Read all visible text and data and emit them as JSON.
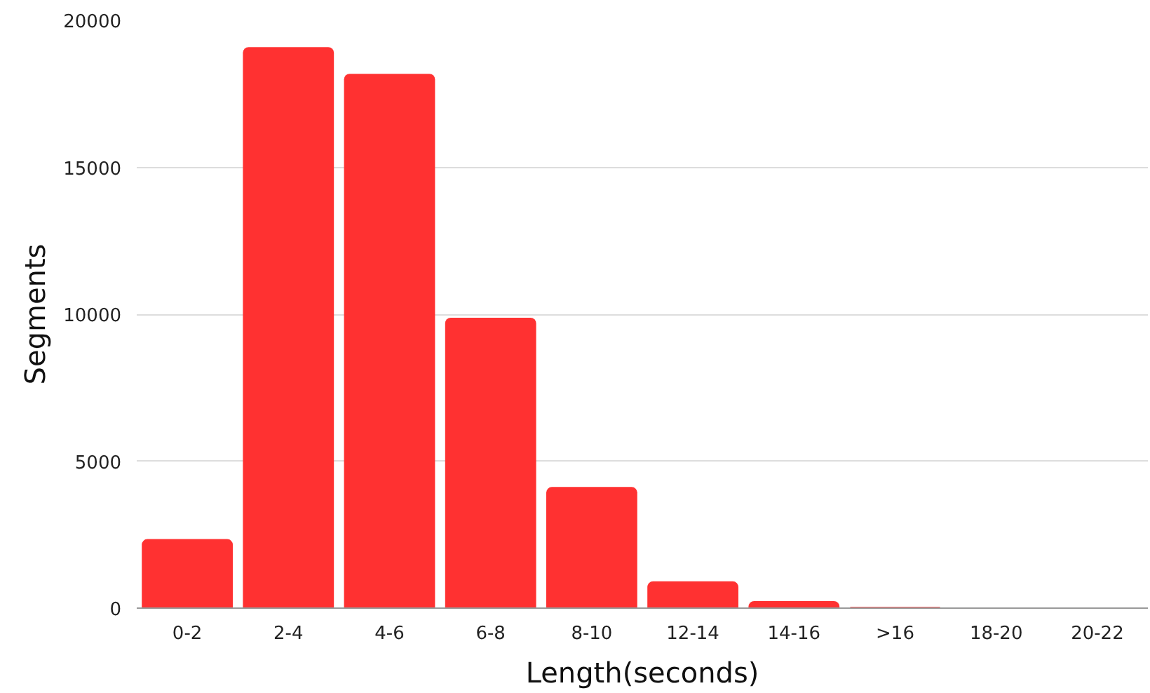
{
  "chart_data": {
    "type": "bar",
    "xlabel": "Length(seconds)",
    "ylabel": "Segments",
    "categories": [
      "0-2",
      "2-4",
      "4-6",
      "6-8",
      "8-10",
      "12-14",
      "14-16",
      ">16",
      "18-20",
      "20-22"
    ],
    "values": [
      2350,
      19090,
      18180,
      9880,
      4120,
      910,
      240,
      40,
      0,
      0
    ],
    "color": "#ff3131",
    "ylim": [
      0,
      20000
    ],
    "yticks": [
      0,
      5000,
      10000,
      15000,
      20000
    ],
    "grid": "y"
  }
}
